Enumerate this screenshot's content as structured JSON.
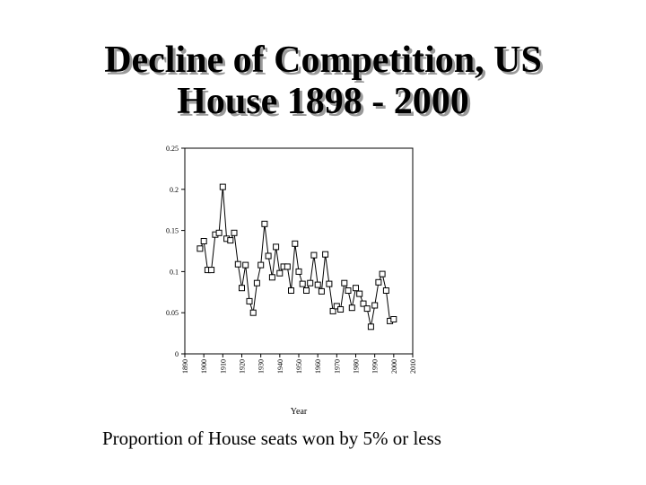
{
  "slide": {
    "title_line1": "Decline of Competition, US",
    "title_line2": "House 1898 - 2000",
    "caption": "Proportion of House seats won by 5% or less"
  },
  "chart_data": {
    "type": "line",
    "title": "Decline of Competition, US House 1898 - 2000",
    "xlabel": "Year",
    "ylabel": "",
    "xlim": [
      1890,
      2010
    ],
    "ylim": [
      0,
      0.25
    ],
    "xticks": [
      "1890",
      "1900",
      "1910",
      "1920",
      "1930",
      "1940",
      "1950",
      "1960",
      "1970",
      "1980",
      "1990",
      "2000",
      "2010"
    ],
    "yticks": [
      "0.25",
      "0.2",
      "0.15",
      "0.1",
      "0.05",
      "0"
    ],
    "marker": "open-square",
    "series": [
      {
        "name": "Proportion of House seats won by 5% or less",
        "x": [
          1898,
          1900,
          1902,
          1904,
          1906,
          1908,
          1910,
          1912,
          1914,
          1916,
          1918,
          1920,
          1922,
          1924,
          1926,
          1928,
          1930,
          1932,
          1934,
          1936,
          1938,
          1940,
          1942,
          1944,
          1946,
          1948,
          1950,
          1952,
          1954,
          1956,
          1958,
          1960,
          1962,
          1964,
          1966,
          1968,
          1970,
          1972,
          1974,
          1976,
          1978,
          1980,
          1982,
          1984,
          1986,
          1988,
          1990,
          1992,
          1994,
          1996,
          1998,
          2000
        ],
        "y": [
          0.128,
          0.137,
          0.102,
          0.102,
          0.145,
          0.147,
          0.203,
          0.14,
          0.138,
          0.147,
          0.109,
          0.08,
          0.108,
          0.064,
          0.05,
          0.086,
          0.108,
          0.158,
          0.119,
          0.093,
          0.13,
          0.098,
          0.106,
          0.106,
          0.077,
          0.134,
          0.1,
          0.085,
          0.077,
          0.086,
          0.12,
          0.084,
          0.076,
          0.121,
          0.085,
          0.052,
          0.058,
          0.054,
          0.086,
          0.077,
          0.056,
          0.08,
          0.073,
          0.061,
          0.055,
          0.033,
          0.059,
          0.087,
          0.097,
          0.077,
          0.04,
          0.042
        ]
      }
    ]
  }
}
